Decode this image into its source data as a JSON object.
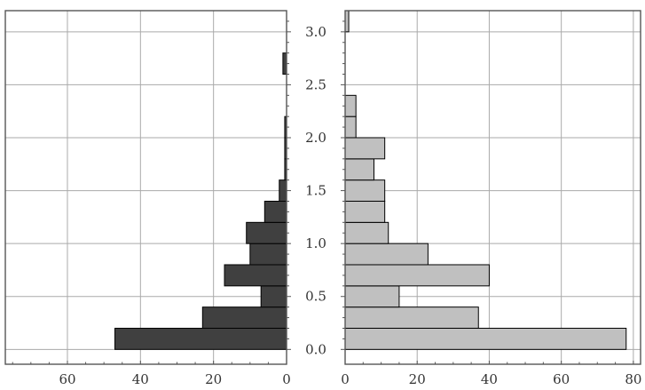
{
  "chart_data": {
    "type": "bar",
    "orientation": "horizontal",
    "layout": "back-to-back",
    "bin_width": 0.2,
    "bins": [
      0.0,
      0.2,
      0.4,
      0.6,
      0.8,
      1.0,
      1.2,
      1.4,
      1.6,
      1.8,
      2.0,
      2.2,
      2.4,
      2.6,
      2.8,
      3.0
    ],
    "series": [
      {
        "side": "left",
        "color": "#404040",
        "values": [
          47,
          23,
          7,
          17,
          10,
          11,
          6,
          2,
          0.5,
          0.5,
          0.5,
          0,
          0,
          1,
          0,
          0
        ]
      },
      {
        "side": "right",
        "color": "#c0c0c0",
        "values": [
          78,
          37,
          15,
          40,
          23,
          12,
          11,
          11,
          8,
          11,
          3,
          3,
          0,
          0,
          0,
          1
        ]
      }
    ],
    "left_axis": {
      "ticks": [
        0,
        20,
        40,
        60
      ],
      "labels": [
        "0",
        "20",
        "40",
        "60"
      ],
      "range": [
        0,
        77
      ]
    },
    "right_axis": {
      "ticks": [
        0,
        20,
        40,
        60,
        80
      ],
      "labels": [
        "0",
        "20",
        "40",
        "60",
        "80"
      ],
      "range": [
        0,
        82
      ]
    },
    "y_axis": {
      "ticks": [
        0.0,
        0.5,
        1.0,
        1.5,
        2.0,
        2.5,
        3.0
      ],
      "labels": [
        "0.0",
        "0.5",
        "1.0",
        "1.5",
        "2.0",
        "2.5",
        "3.0"
      ],
      "range": [
        -0.14,
        3.2
      ]
    },
    "grid": true,
    "title": "",
    "xlabel": "",
    "ylabel": ""
  }
}
